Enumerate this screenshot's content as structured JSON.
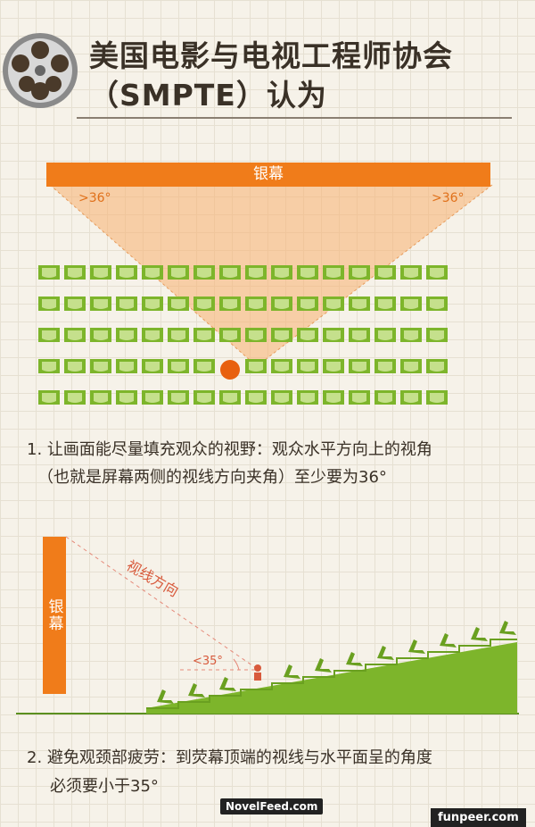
{
  "header": {
    "title_line1": "美国电影与电视工程师协会",
    "title_line2": "（SMPTE）认为"
  },
  "top_diagram": {
    "screen_label": "银幕",
    "angle_left": ">36°",
    "angle_right": ">36°",
    "seat_rows": 5,
    "seat_cols": 16,
    "viewer_row": 4,
    "viewer_col": 8
  },
  "caption1": {
    "line1": "1. 让画面能尽量填充观众的视野：观众水平方向上的视角",
    "line2": "（也就是屏幕两侧的视线方向夹角）至少要为36°"
  },
  "side_diagram": {
    "screen_label": "银幕",
    "sight_label": "视线方向",
    "angle_label": "<35°"
  },
  "caption2": {
    "line1": "2. 避免观颈部疲劳：到荧幕顶端的视线与水平面呈的角度",
    "line2": "必须要小于35°"
  },
  "watermarks": {
    "center": "NovelFeed.com",
    "right": "funpeer.com"
  },
  "colors": {
    "orange": "#f07c1a",
    "seat_green": "#7db52b",
    "text_dark": "#3a3127"
  }
}
